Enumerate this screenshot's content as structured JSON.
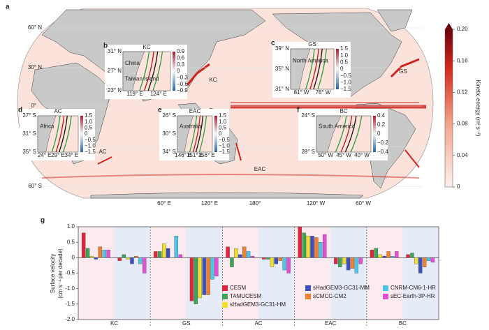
{
  "panel_a": {
    "letter": "a",
    "lat_labels": [
      "60° N",
      "30° N",
      "0°",
      "30° S",
      "60° S"
    ],
    "lon_labels": [
      "60° E",
      "120° E",
      "180°",
      "120° W",
      "60° W"
    ],
    "current_labels": [
      "KC",
      "GS",
      "AC",
      "EAC",
      "BC"
    ],
    "colorbar": {
      "label": "Kinetic energy (m² s⁻²)",
      "lim": [
        0,
        0.2
      ],
      "ticks": [
        0,
        0.04,
        0.08,
        0.12,
        0.16,
        {
          "value": 0.2,
          "label": "0.20"
        }
      ]
    },
    "insets": [
      {
        "letter": "b",
        "title": "KC",
        "land": [
          "China",
          "Taiwan Island"
        ],
        "yticks": [
          "31° N",
          "27° N",
          "23° N"
        ],
        "xticks": [
          "119° E",
          "124° E"
        ],
        "cbar": [
          "0.9",
          "0.6",
          "0.3",
          "0",
          "−0.3",
          "−0.6",
          "−0.9"
        ]
      },
      {
        "letter": "c",
        "title": "GS",
        "land": [
          "North America"
        ],
        "yticks": [
          "39° N",
          "35° N",
          "31° N"
        ],
        "xticks": [
          "81° W",
          "76° W"
        ],
        "cbar": [
          "1.5",
          "1.0",
          "0.5",
          "0",
          "−0.5",
          "−1.0",
          "−1.5"
        ]
      },
      {
        "letter": "d",
        "title": "AC",
        "land": [
          "Africa"
        ],
        "yticks": [
          "27° S",
          "31° S",
          "35° S"
        ],
        "xticks": [
          "24° E",
          "29° E",
          "34° E"
        ],
        "cbar": [
          "1.5",
          "1.0",
          "0.5",
          "0",
          "−0.5",
          "−1.0",
          "−1.5"
        ]
      },
      {
        "letter": "e",
        "title": "EAC",
        "land": [
          "Australia"
        ],
        "yticks": [
          "26° S",
          "30° S",
          "34° S"
        ],
        "xticks": [
          "146° E",
          "151° E",
          "156° E"
        ],
        "cbar": [
          "1.5",
          "1.0",
          "0.5",
          "0",
          "−0.5",
          "−1.0",
          "−1.5"
        ]
      },
      {
        "letter": "f",
        "title": "BC",
        "land": [
          "South America"
        ],
        "yticks": [
          "24° S",
          "28° S"
        ],
        "xticks": [
          "50° W",
          "45° W",
          "40° W"
        ],
        "cbar": [
          "0.4",
          "0.2",
          "0",
          "−0.2",
          "−0.4"
        ]
      }
    ]
  },
  "chart_data": {
    "type": "bar",
    "letter": "g",
    "y_label": "Surface velocity",
    "y_label_unit": "(cm s⁻¹ per decade)",
    "categories": [
      "KC",
      null,
      "GS",
      null,
      "AC",
      null,
      "EAC",
      null,
      "BC",
      null
    ],
    "ylim": [
      -2,
      1
    ],
    "yticks": [
      {
        "value": 1,
        "label": "1.0"
      },
      0.5,
      0,
      -0.5,
      {
        "value": -1,
        "label": "-1.0"
      },
      -1.5,
      {
        "value": -2,
        "label": "-2.0"
      }
    ],
    "series": [
      {
        "name": "CESM",
        "color": "#e3243f",
        "values": [
          0.8,
          -0.1,
          0.2,
          -1.4,
          0.35,
          -0.05,
          1.0,
          -0.2,
          0.25,
          0.1
        ]
      },
      {
        "name": "TAMUCESM",
        "color": "#3aa655",
        "values": [
          0.3,
          0.1,
          0.2,
          -1.5,
          -0.3,
          -0.05,
          0.8,
          -0.3,
          0.3,
          0.15
        ]
      },
      {
        "name": "sHadGEM3-GC31-HM",
        "color": "#f2df2b",
        "values": [
          0.05,
          -0.05,
          0.45,
          -1.3,
          0.3,
          -0.3,
          0.7,
          -0.2,
          0.1,
          -0.2
        ]
      },
      {
        "name": "sHadGEM3-GC31-MM",
        "color": "#3c4fc1",
        "values": [
          -0.05,
          -0.2,
          0.3,
          -1.2,
          0.1,
          -0.2,
          0.7,
          -0.4,
          0.05,
          -0.5
        ]
      },
      {
        "name": "sCMCC-CM2",
        "color": "#f08030",
        "values": [
          0.35,
          0.05,
          0.0,
          -1.2,
          0.35,
          -0.1,
          0.65,
          -0.35,
          0.2,
          -0.3
        ]
      },
      {
        "name": "CNRM-CM6-1-HR",
        "color": "#4fc6e8",
        "values": [
          0.25,
          -0.2,
          0.7,
          -0.7,
          0.2,
          -0.4,
          0.5,
          -0.5,
          0.05,
          -0.1
        ]
      },
      {
        "name": "sEC-Earth-3P-HR",
        "color": "#e64fd4",
        "values": [
          0.25,
          -0.5,
          0.1,
          -0.6,
          0.05,
          -0.5,
          0.75,
          -0.2,
          0.2,
          -0.15
        ]
      }
    ]
  }
}
